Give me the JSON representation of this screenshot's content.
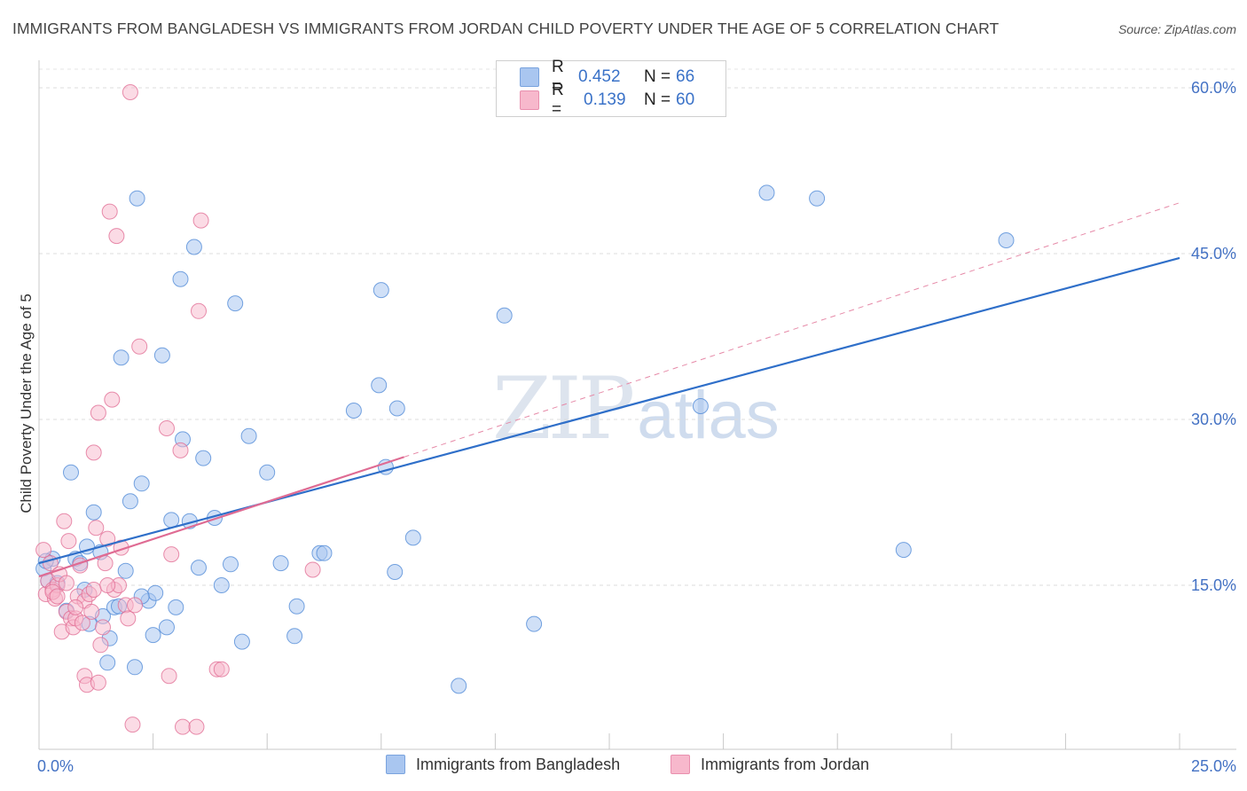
{
  "title": "IMMIGRANTS FROM BANGLADESH VS IMMIGRANTS FROM JORDAN CHILD POVERTY UNDER THE AGE OF 5 CORRELATION CHART",
  "source": "Source: ZipAtlas.com",
  "watermark": {
    "part1": "ZIP",
    "part2": "atlas"
  },
  "legend": {
    "rows": [
      {
        "r_key": "R =",
        "r_value": "0.452",
        "n_key": "N =",
        "n_value": "66",
        "color": "#a9c6f0"
      },
      {
        "r_key": "R =",
        "r_value": "0.139",
        "n_key": "N =",
        "n_value": "60",
        "color": "#f7b8cc"
      }
    ]
  },
  "bottom_legend": {
    "items": [
      {
        "label": "Immigrants from Bangladesh",
        "color": "#a9c6f0"
      },
      {
        "label": "Immigrants from Jordan",
        "color": "#f7b8cc"
      }
    ]
  },
  "chart_data": {
    "type": "scatter",
    "title": "IMMIGRANTS FROM BANGLADESH VS IMMIGRANTS FROM JORDAN CHILD POVERTY UNDER THE AGE OF 5 CORRELATION CHART",
    "xlabel": "",
    "ylabel": "Child Poverty Under the Age of 5",
    "xlim": [
      0,
      25
    ],
    "ylim": [
      0,
      60
    ],
    "x_tick_labels": [
      "0.0%",
      "25.0%"
    ],
    "y_ticks": [
      15,
      30,
      45,
      60
    ],
    "y_tick_labels": [
      "15.0%",
      "30.0%",
      "45.0%",
      "60.0%"
    ],
    "grid": true,
    "series": [
      {
        "name": "Immigrants from Bangladesh",
        "color": "#4a86d6",
        "fill": "#a9c6f0",
        "points": [
          [
            0.1,
            16.5
          ],
          [
            0.2,
            15.4
          ],
          [
            0.3,
            17.4
          ],
          [
            0.4,
            15.2
          ],
          [
            0.6,
            12.7
          ],
          [
            0.7,
            25.2
          ],
          [
            0.8,
            17.4
          ],
          [
            0.9,
            17.0
          ],
          [
            1.0,
            14.6
          ],
          [
            1.05,
            18.5
          ],
          [
            1.1,
            11.5
          ],
          [
            1.2,
            21.6
          ],
          [
            1.35,
            18.0
          ],
          [
            1.4,
            12.2
          ],
          [
            1.5,
            8.0
          ],
          [
            1.55,
            10.2
          ],
          [
            1.65,
            13.0
          ],
          [
            1.75,
            13.1
          ],
          [
            1.8,
            35.6
          ],
          [
            1.9,
            16.3
          ],
          [
            2.0,
            22.6
          ],
          [
            2.1,
            7.6
          ],
          [
            2.15,
            50.0
          ],
          [
            2.25,
            24.2
          ],
          [
            2.4,
            13.6
          ],
          [
            2.5,
            10.5
          ],
          [
            2.55,
            14.3
          ],
          [
            2.7,
            35.8
          ],
          [
            2.8,
            11.2
          ],
          [
            2.9,
            20.9
          ],
          [
            3.0,
            13.0
          ],
          [
            3.1,
            42.7
          ],
          [
            3.15,
            28.2
          ],
          [
            3.3,
            20.8
          ],
          [
            3.4,
            45.6
          ],
          [
            3.5,
            16.6
          ],
          [
            3.6,
            26.5
          ],
          [
            3.85,
            21.1
          ],
          [
            4.0,
            15.0
          ],
          [
            4.2,
            16.9
          ],
          [
            4.3,
            40.5
          ],
          [
            4.45,
            9.9
          ],
          [
            4.6,
            28.5
          ],
          [
            5.0,
            25.2
          ],
          [
            5.3,
            17.0
          ],
          [
            5.6,
            10.4
          ],
          [
            5.65,
            13.1
          ],
          [
            6.15,
            17.9
          ],
          [
            6.25,
            17.9
          ],
          [
            6.9,
            30.8
          ],
          [
            7.45,
            33.1
          ],
          [
            7.5,
            41.7
          ],
          [
            7.6,
            25.7
          ],
          [
            7.8,
            16.2
          ],
          [
            7.85,
            31.0
          ],
          [
            8.2,
            19.3
          ],
          [
            9.2,
            5.9
          ],
          [
            10.2,
            39.4
          ],
          [
            10.85,
            11.5
          ],
          [
            14.5,
            31.2
          ],
          [
            15.95,
            50.5
          ],
          [
            17.05,
            50.0
          ],
          [
            18.95,
            18.2
          ],
          [
            21.2,
            46.2
          ],
          [
            0.15,
            17.2
          ],
          [
            2.25,
            14.0
          ]
        ],
        "regression": {
          "x": [
            0,
            25
          ],
          "y": [
            17.0,
            44.6
          ]
        }
      },
      {
        "name": "Immigrants from Jordan",
        "color": "#e06a92",
        "fill": "#f7b8cc",
        "points": [
          [
            0.1,
            18.2
          ],
          [
            0.15,
            14.2
          ],
          [
            0.2,
            15.4
          ],
          [
            0.25,
            17.0
          ],
          [
            0.3,
            14.6
          ],
          [
            0.35,
            13.8
          ],
          [
            0.4,
            15.0
          ],
          [
            0.45,
            16.0
          ],
          [
            0.5,
            10.8
          ],
          [
            0.55,
            20.8
          ],
          [
            0.6,
            12.6
          ],
          [
            0.65,
            19.0
          ],
          [
            0.7,
            12.0
          ],
          [
            0.75,
            11.2
          ],
          [
            0.8,
            12.0
          ],
          [
            0.85,
            14.0
          ],
          [
            0.9,
            16.8
          ],
          [
            0.95,
            11.6
          ],
          [
            1.0,
            13.6
          ],
          [
            1.0,
            6.8
          ],
          [
            1.05,
            6.0
          ],
          [
            1.1,
            14.2
          ],
          [
            1.15,
            12.6
          ],
          [
            1.2,
            27.0
          ],
          [
            1.25,
            20.2
          ],
          [
            1.3,
            6.2
          ],
          [
            1.3,
            30.6
          ],
          [
            1.35,
            9.6
          ],
          [
            1.4,
            11.2
          ],
          [
            1.45,
            17.0
          ],
          [
            1.5,
            19.2
          ],
          [
            1.55,
            48.8
          ],
          [
            1.6,
            31.8
          ],
          [
            1.65,
            14.6
          ],
          [
            1.7,
            46.6
          ],
          [
            1.75,
            15.0
          ],
          [
            1.8,
            18.4
          ],
          [
            1.9,
            13.2
          ],
          [
            1.95,
            12.0
          ],
          [
            2.0,
            59.6
          ],
          [
            2.05,
            2.4
          ],
          [
            2.1,
            13.2
          ],
          [
            2.2,
            36.6
          ],
          [
            2.8,
            29.2
          ],
          [
            2.85,
            6.8
          ],
          [
            2.9,
            17.8
          ],
          [
            3.1,
            27.2
          ],
          [
            3.15,
            2.2
          ],
          [
            3.45,
            2.2
          ],
          [
            3.5,
            39.8
          ],
          [
            3.55,
            48.0
          ],
          [
            3.9,
            7.4
          ],
          [
            4.0,
            7.4
          ],
          [
            6.0,
            16.4
          ],
          [
            0.3,
            14.4
          ],
          [
            0.4,
            14.0
          ],
          [
            0.6,
            15.2
          ],
          [
            0.8,
            13.0
          ],
          [
            1.2,
            14.6
          ],
          [
            1.5,
            15.0
          ]
        ],
        "regression": {
          "x": [
            0,
            8.0
          ],
          "y": [
            15.8,
            26.6
          ]
        },
        "regression_extension": {
          "x": [
            8.0,
            25
          ],
          "y": [
            26.6,
            49.6
          ]
        }
      }
    ]
  }
}
